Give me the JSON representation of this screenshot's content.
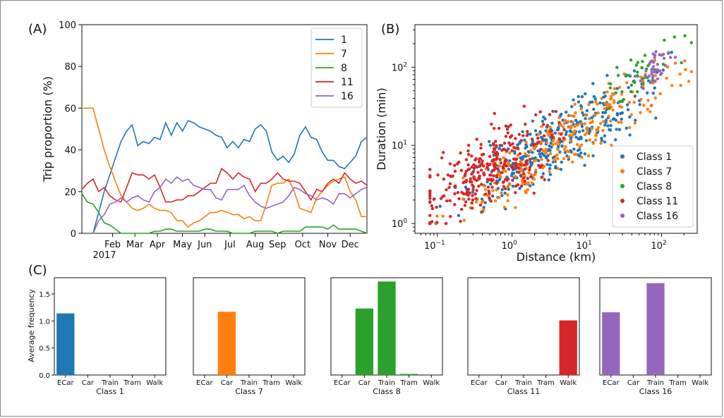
{
  "chart_data": [
    {
      "panel": "(A)",
      "type": "line",
      "ylabel": "Trip proportion (%)",
      "xlabel": "",
      "ylim": [
        0,
        100
      ],
      "yticks": [
        0,
        20,
        40,
        60,
        80,
        100
      ],
      "x_ticks": [
        {
          "label": "Feb",
          "value": 5.5
        },
        {
          "label": "Mar",
          "value": 9.5
        },
        {
          "label": "Apr",
          "value": 13.5
        },
        {
          "label": "May",
          "value": 18
        },
        {
          "label": "Jun",
          "value": 22
        },
        {
          "label": "Jul",
          "value": 26.5
        },
        {
          "label": "Aug",
          "value": 31
        },
        {
          "label": "Sep",
          "value": 35
        },
        {
          "label": "Oct",
          "value": 39.5
        },
        {
          "label": "Nov",
          "value": 44
        },
        {
          "label": "Dec",
          "value": 48
        }
      ],
      "year_label": "2017",
      "xlim": [
        0,
        51
      ],
      "legend_position": "top-right",
      "series": [
        {
          "name": "1",
          "color": "#1f77b4",
          "x": [
            2,
            3,
            4,
            5,
            6,
            7,
            8,
            9,
            10,
            11,
            12,
            13,
            14,
            15,
            16,
            17,
            18,
            19,
            20,
            21,
            22,
            23,
            24,
            25,
            26,
            27,
            28,
            29,
            30,
            31,
            32,
            33,
            34,
            35,
            36,
            37,
            38,
            39,
            40,
            41,
            42,
            43,
            44,
            45,
            46,
            47,
            48,
            49,
            50,
            51
          ],
          "values": [
            0,
            10,
            20,
            28,
            36,
            44,
            49,
            52,
            42,
            44,
            43,
            46,
            45,
            53,
            47,
            53,
            49,
            54,
            53,
            51,
            50,
            49,
            47,
            46,
            41,
            44,
            41,
            45,
            44,
            50,
            52,
            49,
            39,
            35,
            37,
            34,
            38,
            47,
            51,
            46,
            45,
            39,
            35,
            35,
            32,
            31,
            34,
            37,
            44,
            46
          ]
        },
        {
          "name": "7",
          "color": "#ff7f0e",
          "x": [
            0,
            1,
            2,
            3,
            4,
            5,
            6,
            7,
            8,
            9,
            10,
            11,
            12,
            13,
            14,
            15,
            16,
            17,
            18,
            19,
            20,
            21,
            22,
            23,
            24,
            25,
            26,
            27,
            28,
            29,
            30,
            31,
            32,
            33,
            34,
            35,
            36,
            37,
            38,
            39,
            40,
            41,
            42,
            43,
            44,
            45,
            46,
            47,
            48,
            49,
            50,
            51
          ],
          "values": [
            60,
            60,
            60,
            50,
            40,
            32,
            25,
            18,
            15,
            12,
            11,
            12,
            14,
            12,
            11,
            11,
            10,
            6,
            6,
            3,
            5,
            6,
            8,
            10,
            10,
            11,
            10,
            9,
            9,
            7,
            8,
            6,
            6,
            14,
            23,
            24,
            24,
            26,
            20,
            12,
            11,
            10,
            17,
            20,
            23,
            25,
            26,
            27,
            20,
            16,
            8,
            8
          ]
        },
        {
          "name": "8",
          "color": "#2ca02c",
          "x": [
            0,
            1,
            2,
            3,
            4,
            5,
            6,
            7,
            8,
            9,
            10,
            11,
            12,
            13,
            14,
            15,
            16,
            17,
            18,
            19,
            20,
            21,
            22,
            23,
            24,
            25,
            26,
            27,
            28,
            29,
            30,
            31,
            32,
            33,
            34,
            35,
            36,
            37,
            38,
            39,
            40,
            41,
            42,
            43,
            44,
            45,
            46,
            47,
            48,
            49,
            50,
            51
          ],
          "values": [
            19,
            15,
            14,
            10,
            5,
            4,
            2,
            0,
            0,
            0,
            0,
            0,
            0,
            1,
            1,
            2,
            2,
            1,
            1,
            1,
            1,
            1,
            2,
            2,
            1,
            1,
            1,
            0,
            0,
            0,
            0,
            1,
            1,
            1,
            1,
            0,
            1,
            1,
            1,
            1,
            3,
            3,
            3,
            3,
            2,
            4,
            2,
            2,
            2,
            2,
            1,
            0
          ]
        },
        {
          "name": "11",
          "color": "#d62728",
          "x": [
            0,
            1,
            2,
            3,
            4,
            5,
            6,
            7,
            8,
            9,
            10,
            11,
            12,
            13,
            14,
            15,
            16,
            17,
            18,
            19,
            20,
            21,
            22,
            23,
            24,
            25,
            26,
            27,
            28,
            29,
            30,
            31,
            32,
            33,
            34,
            35,
            36,
            37,
            38,
            39,
            40,
            41,
            42,
            43,
            44,
            45,
            46,
            47,
            48,
            49,
            50,
            51
          ],
          "values": [
            21,
            24,
            26,
            20,
            22,
            18,
            16,
            15,
            22,
            29,
            28,
            28,
            26,
            28,
            22,
            15,
            15,
            16,
            16,
            18,
            18,
            20,
            22,
            24,
            24,
            31,
            29,
            26,
            29,
            27,
            26,
            20,
            24,
            24,
            26,
            29,
            26,
            25,
            25,
            24,
            20,
            16,
            21,
            20,
            24,
            26,
            24,
            29,
            26,
            24,
            25,
            23
          ]
        },
        {
          "name": "16",
          "color": "#9467bd",
          "x": [
            2,
            3,
            4,
            5,
            6,
            7,
            8,
            9,
            10,
            11,
            12,
            13,
            14,
            15,
            16,
            17,
            18,
            19,
            20,
            21,
            22,
            23,
            24,
            25,
            26,
            27,
            28,
            29,
            30,
            31,
            32,
            33,
            34,
            35,
            36,
            37,
            38,
            39,
            40,
            41,
            42,
            43,
            44,
            45,
            46,
            47,
            48,
            49,
            50,
            51
          ],
          "values": [
            0,
            6,
            9,
            14,
            15,
            17,
            15,
            17,
            18,
            16,
            15,
            20,
            22,
            26,
            24,
            27,
            25,
            26,
            23,
            22,
            21,
            21,
            17,
            16,
            21,
            21,
            21,
            23,
            18,
            15,
            13,
            12,
            13,
            14,
            15,
            18,
            22,
            21,
            19,
            18,
            16,
            17,
            16,
            14,
            19,
            19,
            17,
            19,
            21,
            22
          ]
        }
      ]
    },
    {
      "panel": "(B)",
      "type": "scatter",
      "xlabel": "Distance (km)",
      "ylabel": "Duration (min)",
      "xscale": "log",
      "yscale": "log",
      "xlim": [
        0.05,
        300
      ],
      "ylim": [
        0.75,
        350
      ],
      "xticks": [
        {
          "value": 0.1,
          "base": "10",
          "exp": "−1"
        },
        {
          "value": 1,
          "base": "10",
          "exp": "0"
        },
        {
          "value": 10,
          "base": "10",
          "exp": "1"
        },
        {
          "value": 100,
          "base": "10",
          "exp": "2"
        }
      ],
      "yticks": [
        {
          "value": 1,
          "base": "10",
          "exp": "0"
        },
        {
          "value": 10,
          "base": "10",
          "exp": "1"
        },
        {
          "value": 100,
          "base": "10",
          "exp": "2"
        }
      ],
      "legend_position": "bottom-right",
      "series": [
        {
          "name": "Class 1",
          "color": "#1f77b4",
          "center_logx": 0.6,
          "spread_logx": 0.62,
          "slope": 0.55,
          "intercept": 0.7,
          "noise": 0.2,
          "n": 360
        },
        {
          "name": "Class 7",
          "color": "#ff7f0e",
          "center_logx": 0.75,
          "spread_logx": 0.7,
          "slope": 0.58,
          "intercept": 0.65,
          "noise": 0.2,
          "n": 260
        },
        {
          "name": "Class 8",
          "color": "#2ca02c",
          "center_logx": 1.7,
          "spread_logx": 0.3,
          "slope": 0.6,
          "intercept": 0.9,
          "noise": 0.15,
          "n": 40
        },
        {
          "name": "Class 11",
          "color": "#d62728",
          "center_logx": -0.3,
          "spread_logx": 0.48,
          "slope": 0.5,
          "intercept": 0.85,
          "noise": 0.23,
          "n": 300
        },
        {
          "name": "Class 16",
          "color": "#9467bd",
          "center_logx": 1.9,
          "spread_logx": 0.1,
          "slope": 0.6,
          "intercept": 0.85,
          "noise": 0.1,
          "n": 40
        }
      ]
    },
    {
      "panel": "(C)",
      "type": "bar",
      "ylabel": "Average frequency",
      "ylim": [
        0,
        1.8
      ],
      "yticks": [
        0.0,
        0.5,
        1.0,
        1.5
      ],
      "categories": [
        "ECar",
        "Car",
        "Train",
        "Tram",
        "Walk"
      ],
      "subplots": [
        {
          "title": "Class 1",
          "color": "#1f77b4",
          "values": [
            1.14,
            0,
            0,
            0,
            0
          ]
        },
        {
          "title": "Class 7",
          "color": "#ff7f0e",
          "values": [
            0,
            1.17,
            0,
            0,
            0
          ]
        },
        {
          "title": "Class 8",
          "color": "#2ca02c",
          "values": [
            0,
            1.23,
            1.73,
            0.02,
            0
          ]
        },
        {
          "title": "Class 11",
          "color": "#d62728",
          "values": [
            0,
            0,
            0,
            0,
            1.01
          ]
        },
        {
          "title": "Class 16",
          "color": "#9467bd",
          "values": [
            1.16,
            0,
            1.7,
            0,
            0
          ]
        }
      ]
    }
  ],
  "ytick_labels_A": [
    "0",
    "20",
    "40",
    "60",
    "80",
    "100"
  ],
  "ytick_labels_C": [
    "0.0",
    "0.5",
    "1.0",
    "1.5"
  ]
}
